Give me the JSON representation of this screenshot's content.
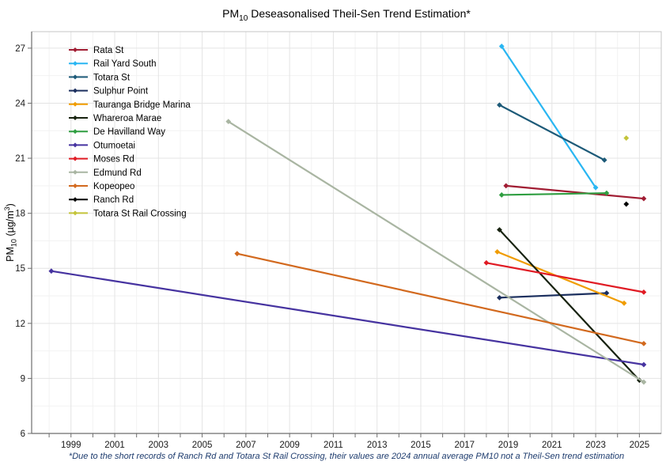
{
  "title_parts": {
    "prefix": "PM",
    "sub": "10",
    "rest": " Deseasonalised Theil-Sen Trend Estimation*"
  },
  "ylabel_parts": {
    "prefix": "PM",
    "sub": "10",
    "mid": " (µg/m",
    "sup": "3",
    "suffix": ")"
  },
  "footnote": "*Due to the short records of Ranch Rd and Totara St Rail Crossing, their values are 2024 annual average PM10 not a Theil-Sen trend estimation",
  "chart_data": {
    "type": "line",
    "title": "PM10 Deseasonalised Theil-Sen Trend Estimation*",
    "xlabel": "",
    "ylabel": "PM10 (µg/m3)",
    "xlim": [
      1997.2,
      2026.0
    ],
    "ylim": [
      6,
      27.9
    ],
    "grid": true,
    "legend_position": "top-left",
    "x_major_ticks": [
      1999,
      2001,
      2003,
      2005,
      2007,
      2009,
      2011,
      2013,
      2015,
      2017,
      2019,
      2021,
      2023,
      2025
    ],
    "x_minor_ticks": [
      1998,
      2000,
      2002,
      2004,
      2006,
      2008,
      2010,
      2012,
      2014,
      2016,
      2018,
      2020,
      2022,
      2024
    ],
    "y_major_ticks": [
      6,
      9,
      12,
      15,
      18,
      21,
      24,
      27
    ],
    "y_minor_ticks": [
      7.5,
      10.5,
      13.5,
      16.5,
      19.5,
      22.5,
      25.5
    ],
    "series": [
      {
        "name": "Rata St",
        "color": "#a11d33",
        "points": [
          [
            2018.9,
            19.5
          ],
          [
            2025.2,
            18.8
          ]
        ]
      },
      {
        "name": "Rail Yard South",
        "color": "#29b6f2",
        "points": [
          [
            2018.7,
            27.1
          ],
          [
            2023.0,
            19.4
          ]
        ]
      },
      {
        "name": "Totara St",
        "color": "#1d5a78",
        "points": [
          [
            2018.6,
            23.9
          ],
          [
            2023.4,
            20.9
          ]
        ]
      },
      {
        "name": "Sulphur Point",
        "color": "#1b2f5e",
        "points": [
          [
            2018.6,
            13.4
          ],
          [
            2023.5,
            13.65
          ]
        ]
      },
      {
        "name": "Tauranga Bridge Marina",
        "color": "#f09c00",
        "points": [
          [
            2018.5,
            15.9
          ],
          [
            2024.3,
            13.1
          ]
        ]
      },
      {
        "name": "Whareroa Marae",
        "color": "#17220f",
        "points": [
          [
            2018.6,
            17.1
          ],
          [
            2025.0,
            8.9
          ]
        ]
      },
      {
        "name": "De Havilland Way",
        "color": "#2f9e41",
        "points": [
          [
            2018.7,
            19.0
          ],
          [
            2023.5,
            19.1
          ]
        ]
      },
      {
        "name": "Otumoetai",
        "color": "#4633a0",
        "points": [
          [
            1998.1,
            14.85
          ],
          [
            2025.2,
            9.75
          ]
        ]
      },
      {
        "name": "Moses Rd",
        "color": "#e01b24",
        "points": [
          [
            2018.0,
            15.3
          ],
          [
            2025.2,
            13.7
          ]
        ]
      },
      {
        "name": "Edmund Rd",
        "color": "#a9b5a2",
        "points": [
          [
            2006.2,
            23.0
          ],
          [
            2025.2,
            8.8
          ]
        ]
      },
      {
        "name": "Kopeopeo",
        "color": "#d2691e",
        "points": [
          [
            2006.6,
            15.8
          ],
          [
            2025.2,
            10.9
          ]
        ]
      },
      {
        "name": "Ranch Rd",
        "color": "#000000",
        "points": [
          [
            2024.4,
            18.5
          ]
        ]
      },
      {
        "name": "Totara St Rail Crossing",
        "color": "#c3c43a",
        "points": [
          [
            2024.4,
            22.1
          ]
        ]
      }
    ],
    "style": {
      "grid_major": "#e4e4e4",
      "grid_minor": "#f2f2f2",
      "panel_border": "#c6c6c6",
      "axis_line": "#6e6e6e",
      "tick_color": "#6e6e6e",
      "tick_label_color": "#1a1a1a",
      "legend_text_color": "#000000",
      "footnote_color": "#1e3c6e"
    }
  }
}
